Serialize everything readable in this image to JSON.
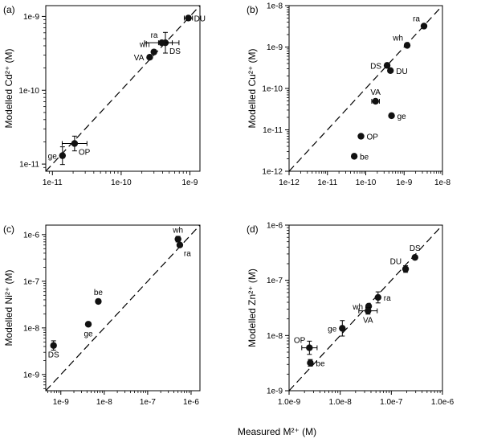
{
  "figure": {
    "xlabel_shared": "Measured M²⁺ (M)"
  },
  "chart_data": [
    {
      "panel_label": "(a)",
      "type": "scatter",
      "title": "",
      "xlabel": "",
      "ylabel": "Modelled Cd²⁺ (M)",
      "xscale": "log",
      "yscale": "log",
      "xlim": [
        8e-12,
        1.4e-09
      ],
      "ylim": [
        8e-12,
        1.4e-09
      ],
      "xticks": [
        1e-11,
        1e-10,
        1e-09
      ],
      "xtick_labels": [
        "1e-11",
        "1e-10",
        "1e-9"
      ],
      "yticks": [
        1e-11,
        1e-10,
        1e-09
      ],
      "ytick_labels": [
        "1e-11",
        "1e-10",
        "1e-9"
      ],
      "identity_line": true,
      "points": [
        {
          "label": "DU",
          "x": 9.5e-10,
          "y": 9.5e-10,
          "xerr": 0.06,
          "yerr": 0.03,
          "label_pos": "right"
        },
        {
          "label": "DS",
          "x": 4.4e-10,
          "y": 4.4e-10,
          "xerr": 0.1,
          "yerr": 0.14,
          "label_pos": "below-right"
        },
        {
          "label": "ra",
          "x": 3.9e-10,
          "y": 4.4e-10,
          "xerr": 0.25,
          "yerr": 0.0,
          "label_pos": "above-left"
        },
        {
          "label": "wh",
          "x": 3e-10,
          "y": 3.3e-10,
          "xerr": 0.0,
          "yerr": 0.0,
          "label_pos": "above-left"
        },
        {
          "label": "VA",
          "x": 2.6e-10,
          "y": 2.8e-10,
          "xerr": 0.0,
          "yerr": 0.0,
          "label_pos": "left"
        },
        {
          "label": "OP",
          "x": 2.1e-11,
          "y": 1.9e-11,
          "xerr": 0.18,
          "yerr": 0.1,
          "label_pos": "below-right"
        },
        {
          "label": "ge",
          "x": 1.4e-11,
          "y": 1.3e-11,
          "xerr": 0.0,
          "yerr": 0.12,
          "label_pos": "left"
        }
      ]
    },
    {
      "panel_label": "(b)",
      "type": "scatter",
      "title": "",
      "xlabel": "",
      "ylabel": "Modelled Cu²⁺ (M)",
      "xscale": "log",
      "yscale": "log",
      "xlim": [
        1e-12,
        1e-08
      ],
      "ylim": [
        1e-12,
        1e-08
      ],
      "xticks": [
        1e-12,
        1e-11,
        1e-10,
        1e-09,
        1e-08
      ],
      "xtick_labels": [
        "1e-12",
        "1e-11",
        "1e-10",
        "1e-9",
        "1e-8"
      ],
      "yticks": [
        1e-12,
        1e-11,
        1e-10,
        1e-09,
        1e-08
      ],
      "ytick_labels": [
        "1e-12",
        "1e-11",
        "1e-10",
        "1e-9",
        "1e-8"
      ],
      "identity_line": true,
      "points": [
        {
          "label": "ra",
          "x": 3.3e-09,
          "y": 3.2e-09,
          "xerr": 0.05,
          "yerr": 0.04,
          "label_pos": "above-left"
        },
        {
          "label": "wh",
          "x": 1.2e-09,
          "y": 1.1e-09,
          "xerr": 0.04,
          "yerr": 0.04,
          "label_pos": "above-left"
        },
        {
          "label": "DS",
          "x": 3.6e-10,
          "y": 3.6e-10,
          "xerr": 0.04,
          "yerr": 0.04,
          "label_pos": "left"
        },
        {
          "label": "DU",
          "x": 4.4e-10,
          "y": 2.7e-10,
          "xerr": 0.04,
          "yerr": 0.04,
          "label_pos": "right"
        },
        {
          "label": "VA",
          "x": 1.8e-10,
          "y": 4.9e-11,
          "xerr": 0.1,
          "yerr": 0.0,
          "label_pos": "above"
        },
        {
          "label": "ge",
          "x": 4.7e-10,
          "y": 2.2e-11,
          "xerr": 0.05,
          "yerr": 0.0,
          "label_pos": "right"
        },
        {
          "label": "OP",
          "x": 7.5e-11,
          "y": 7e-12,
          "xerr": 0.05,
          "yerr": 0.0,
          "label_pos": "right"
        },
        {
          "label": "be",
          "x": 5e-11,
          "y": 2.3e-12,
          "xerr": 0.05,
          "yerr": 0.0,
          "label_pos": "right"
        }
      ]
    },
    {
      "panel_label": "(c)",
      "type": "scatter",
      "title": "",
      "xlabel": "",
      "ylabel": "Modelled Ni²⁺ (M)",
      "xscale": "log",
      "yscale": "log",
      "xlim": [
        4.5e-10,
        1.6e-06
      ],
      "ylim": [
        4.5e-10,
        1.6e-06
      ],
      "xticks": [
        1e-09,
        1e-08,
        1e-07,
        1e-06
      ],
      "xtick_labels": [
        "1e-9",
        "1e-8",
        "1e-7",
        "1e-6"
      ],
      "yticks": [
        1e-09,
        1e-08,
        1e-07,
        1e-06
      ],
      "ytick_labels": [
        "1e-9",
        "1e-8",
        "1e-7",
        "1e-6"
      ],
      "identity_line": true,
      "points": [
        {
          "label": "wh",
          "x": 5e-07,
          "y": 8e-07,
          "xerr": 0.0,
          "yerr": 0.06,
          "label_pos": "above"
        },
        {
          "label": "ra",
          "x": 5.5e-07,
          "y": 6e-07,
          "xerr": 0.0,
          "yerr": 0.0,
          "label_pos": "below-right"
        },
        {
          "label": "be",
          "x": 7.3e-09,
          "y": 3.7e-08,
          "xerr": 0.03,
          "yerr": 0.0,
          "label_pos": "above"
        },
        {
          "label": "ge",
          "x": 4.3e-09,
          "y": 1.2e-08,
          "xerr": 0.04,
          "yerr": 0.03,
          "label_pos": "below"
        },
        {
          "label": "DS",
          "x": 6.8e-10,
          "y": 4.2e-09,
          "xerr": 0.0,
          "yerr": 0.1,
          "label_pos": "below"
        }
      ]
    },
    {
      "panel_label": "(d)",
      "type": "scatter",
      "title": "",
      "xlabel": "",
      "ylabel": "Modelled Zn²⁺ (M)",
      "xscale": "log",
      "yscale": "log",
      "xlim": [
        1e-09,
        1e-06
      ],
      "ylim": [
        1e-09,
        1e-06
      ],
      "xticks": [
        1e-09,
        1e-08,
        1e-07,
        1e-06
      ],
      "xtick_labels": [
        "1.0e-9",
        "1.0e-8",
        "1.0e-7",
        "1.0e-6"
      ],
      "yticks": [
        1e-09,
        1e-08,
        1e-07,
        1e-06
      ],
      "ytick_labels": [
        "1e-9",
        "1e-8",
        "1e-7",
        "1e-6"
      ],
      "identity_line": true,
      "points": [
        {
          "label": "DS",
          "x": 2.9e-07,
          "y": 2.6e-07,
          "xerr": 0.03,
          "yerr": 0.03,
          "label_pos": "above"
        },
        {
          "label": "DU",
          "x": 1.9e-07,
          "y": 1.6e-07,
          "xerr": 0.04,
          "yerr": 0.06,
          "label_pos": "above-left"
        },
        {
          "label": "ra",
          "x": 5.5e-08,
          "y": 4.9e-08,
          "xerr": 0.0,
          "yerr": 0.1,
          "label_pos": "right"
        },
        {
          "label": "wh",
          "x": 3.6e-08,
          "y": 3.4e-08,
          "xerr": 0.0,
          "yerr": 0.0,
          "label_pos": "left"
        },
        {
          "label": "VA",
          "x": 3.5e-08,
          "y": 2.8e-08,
          "xerr": 0.18,
          "yerr": 0.06,
          "label_pos": "below"
        },
        {
          "label": "ge",
          "x": 1.1e-08,
          "y": 1.35e-08,
          "xerr": 0.0,
          "yerr": 0.14,
          "label_pos": "left"
        },
        {
          "label": "OP",
          "x": 2.5e-09,
          "y": 6e-09,
          "xerr": 0.15,
          "yerr": 0.12,
          "label_pos": "above-left"
        },
        {
          "label": "be",
          "x": 2.6e-09,
          "y": 3.2e-09,
          "xerr": 0.0,
          "yerr": 0.06,
          "label_pos": "right"
        }
      ]
    }
  ]
}
